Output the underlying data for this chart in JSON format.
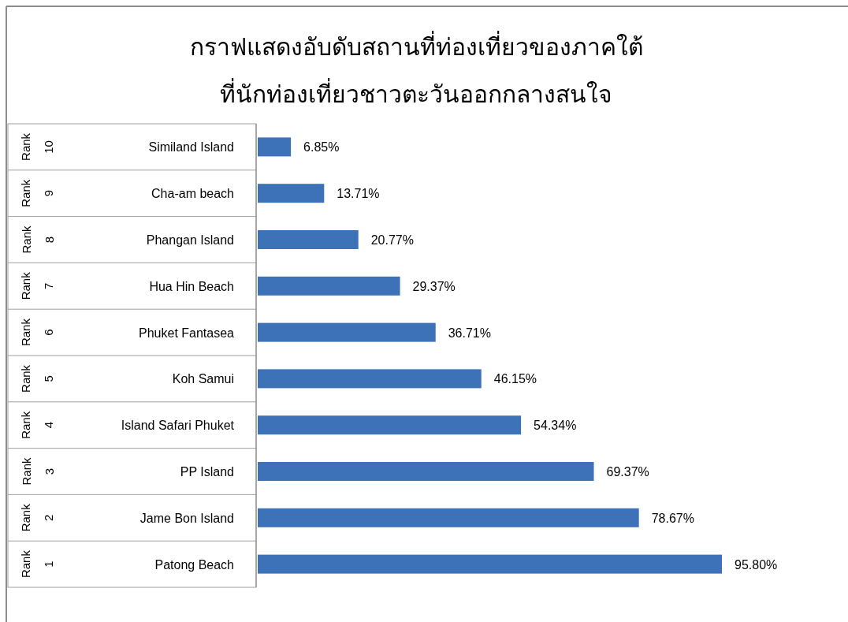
{
  "chart_data": {
    "type": "bar",
    "orientation": "horizontal",
    "title": "กราฟแสดงอับดับสถานที่ท่องเที่ยวของภาคใต้\nที่นักท่องเที่ยวชาวตะวันออกกลางสนใจ",
    "categories": [
      "Similand Island",
      "Cha-am beach",
      "Phangan Island",
      "Hua Hin Beach",
      "Phuket Fantasea",
      "Koh Samui",
      "Island Safari Phuket",
      "PP Island",
      "Jame Bon Island",
      "Patong Beach"
    ],
    "values": [
      6.85,
      13.71,
      20.77,
      29.37,
      36.71,
      46.15,
      54.34,
      69.37,
      78.67,
      95.8
    ],
    "value_labels": [
      "6.85%",
      "13.71%",
      "20.77%",
      "29.37%",
      "36.71%",
      "46.15%",
      "54.34%",
      "69.37%",
      "78.67%",
      "95.80%"
    ],
    "color": "#3d72b8",
    "annotations": [
      "Rank",
      "10",
      "Rank",
      "9",
      "Rank",
      "8",
      "Rank",
      "7",
      "Rank",
      "6",
      "Rank",
      "5",
      "Rank",
      "4",
      "Rank",
      "3",
      "Rank",
      "2",
      "Rank",
      "1"
    ]
  }
}
